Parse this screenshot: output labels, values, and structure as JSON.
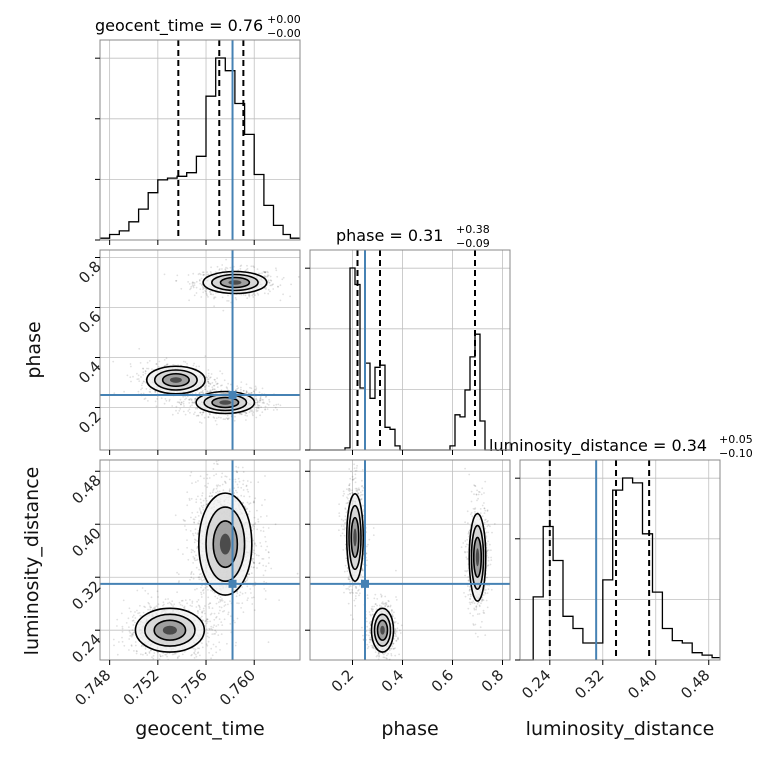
{
  "chart_data": {
    "type": "corner",
    "parameters": [
      "geocent_time",
      "phase",
      "luminosity_distance"
    ],
    "truth": {
      "geocent_time": 0.7582,
      "phase": 0.25,
      "luminosity_distance": 0.31
    },
    "colors": {
      "truth": "#4682b4",
      "hist": "#000000",
      "quantile": "#000000",
      "grid": "#c0c0c0"
    },
    "grid": true,
    "titles": {
      "geocent_time": {
        "name": "geocent_time",
        "value": "0.76",
        "plus": "+0.00",
        "minus": "−0.00"
      },
      "phase": {
        "name": "phase",
        "value": "0.31",
        "plus": "+0.38",
        "minus": "−0.09"
      },
      "luminosity_distance": {
        "name": "luminosity_distance",
        "value": "0.34",
        "plus": "+0.05",
        "minus": "−0.10"
      }
    },
    "axes": {
      "geocent_time": {
        "label": "geocent_time",
        "range": [
          0.7472,
          0.7638
        ],
        "ticks": [
          0.748,
          0.752,
          0.756,
          0.76
        ],
        "tick_labels": [
          "0.748",
          "0.752",
          "0.756",
          "0.760"
        ]
      },
      "phase": {
        "label": "phase",
        "range": [
          0.03,
          0.83
        ],
        "ticks": [
          0.2,
          0.4,
          0.6,
          0.8
        ],
        "tick_labels": [
          "0.2",
          "0.4",
          "0.6",
          "0.8"
        ]
      },
      "luminosity_distance": {
        "label": "luminosity_distance",
        "range": [
          0.195,
          0.497
        ],
        "ticks": [
          0.24,
          0.32,
          0.4,
          0.48
        ],
        "tick_labels": [
          "0.24",
          "0.32",
          "0.40",
          "0.48"
        ]
      }
    },
    "histograms": {
      "geocent_time": {
        "bin_edges": [
          0.7472,
          0.748,
          0.7488,
          0.7496,
          0.7504,
          0.7512,
          0.752,
          0.7528,
          0.7536,
          0.7544,
          0.7552,
          0.756,
          0.7568,
          0.7576,
          0.7584,
          0.7592,
          0.76,
          0.7608,
          0.7616,
          0.7624,
          0.763,
          0.7638
        ],
        "counts": [
          1,
          3,
          5,
          10,
          17,
          26,
          33,
          34,
          35,
          37,
          46,
          79,
          100,
          93,
          75,
          58,
          36,
          19,
          8,
          3,
          1
        ],
        "quantiles": [
          0.7537,
          0.7571,
          0.7591
        ]
      },
      "phase": {
        "bin_edges": [
          0.03,
          0.17,
          0.19,
          0.21,
          0.23,
          0.25,
          0.27,
          0.29,
          0.31,
          0.33,
          0.35,
          0.37,
          0.39,
          0.59,
          0.61,
          0.63,
          0.65,
          0.67,
          0.69,
          0.71,
          0.73,
          0.83
        ],
        "counts": [
          0,
          1,
          88,
          80,
          30,
          42,
          25,
          40,
          41,
          11,
          10,
          2,
          0,
          2,
          17,
          16,
          29,
          45,
          56,
          14,
          0
        ],
        "quantiles": [
          0.22,
          0.31,
          0.69
        ]
      },
      "luminosity_distance": {
        "bin_edges": [
          0.195,
          0.215,
          0.23,
          0.245,
          0.26,
          0.275,
          0.29,
          0.305,
          0.32,
          0.335,
          0.35,
          0.365,
          0.38,
          0.395,
          0.41,
          0.425,
          0.44,
          0.455,
          0.47,
          0.485,
          0.497
        ],
        "counts": [
          0,
          26,
          55,
          41,
          18,
          13,
          7,
          7,
          33,
          70,
          75,
          73,
          52,
          28,
          13,
          8,
          7,
          3,
          2,
          1
        ],
        "quantiles": [
          0.24,
          0.34,
          0.39
        ]
      }
    },
    "clusters": {
      "phase_vs_geocent_time": [
        {
          "x": 0.7584,
          "y": 0.7,
          "sx": 0.0012,
          "sy": 0.02,
          "n": 700
        },
        {
          "x": 0.7576,
          "y": 0.22,
          "sx": 0.0011,
          "sy": 0.02,
          "n": 900
        },
        {
          "x": 0.7535,
          "y": 0.31,
          "sx": 0.0011,
          "sy": 0.025,
          "n": 600
        }
      ],
      "luminosity_distance_vs_geocent_time": [
        {
          "x": 0.7576,
          "y": 0.37,
          "sx": 0.001,
          "sy": 0.035,
          "n": 1400
        },
        {
          "x": 0.753,
          "y": 0.24,
          "sx": 0.0013,
          "sy": 0.015,
          "n": 900
        }
      ],
      "luminosity_distance_vs_phase": [
        {
          "x": 0.21,
          "y": 0.38,
          "sx": 0.015,
          "sy": 0.03,
          "n": 700
        },
        {
          "x": 0.7,
          "y": 0.35,
          "sx": 0.015,
          "sy": 0.03,
          "n": 700
        },
        {
          "x": 0.32,
          "y": 0.24,
          "sx": 0.02,
          "sy": 0.015,
          "n": 600
        }
      ]
    }
  }
}
